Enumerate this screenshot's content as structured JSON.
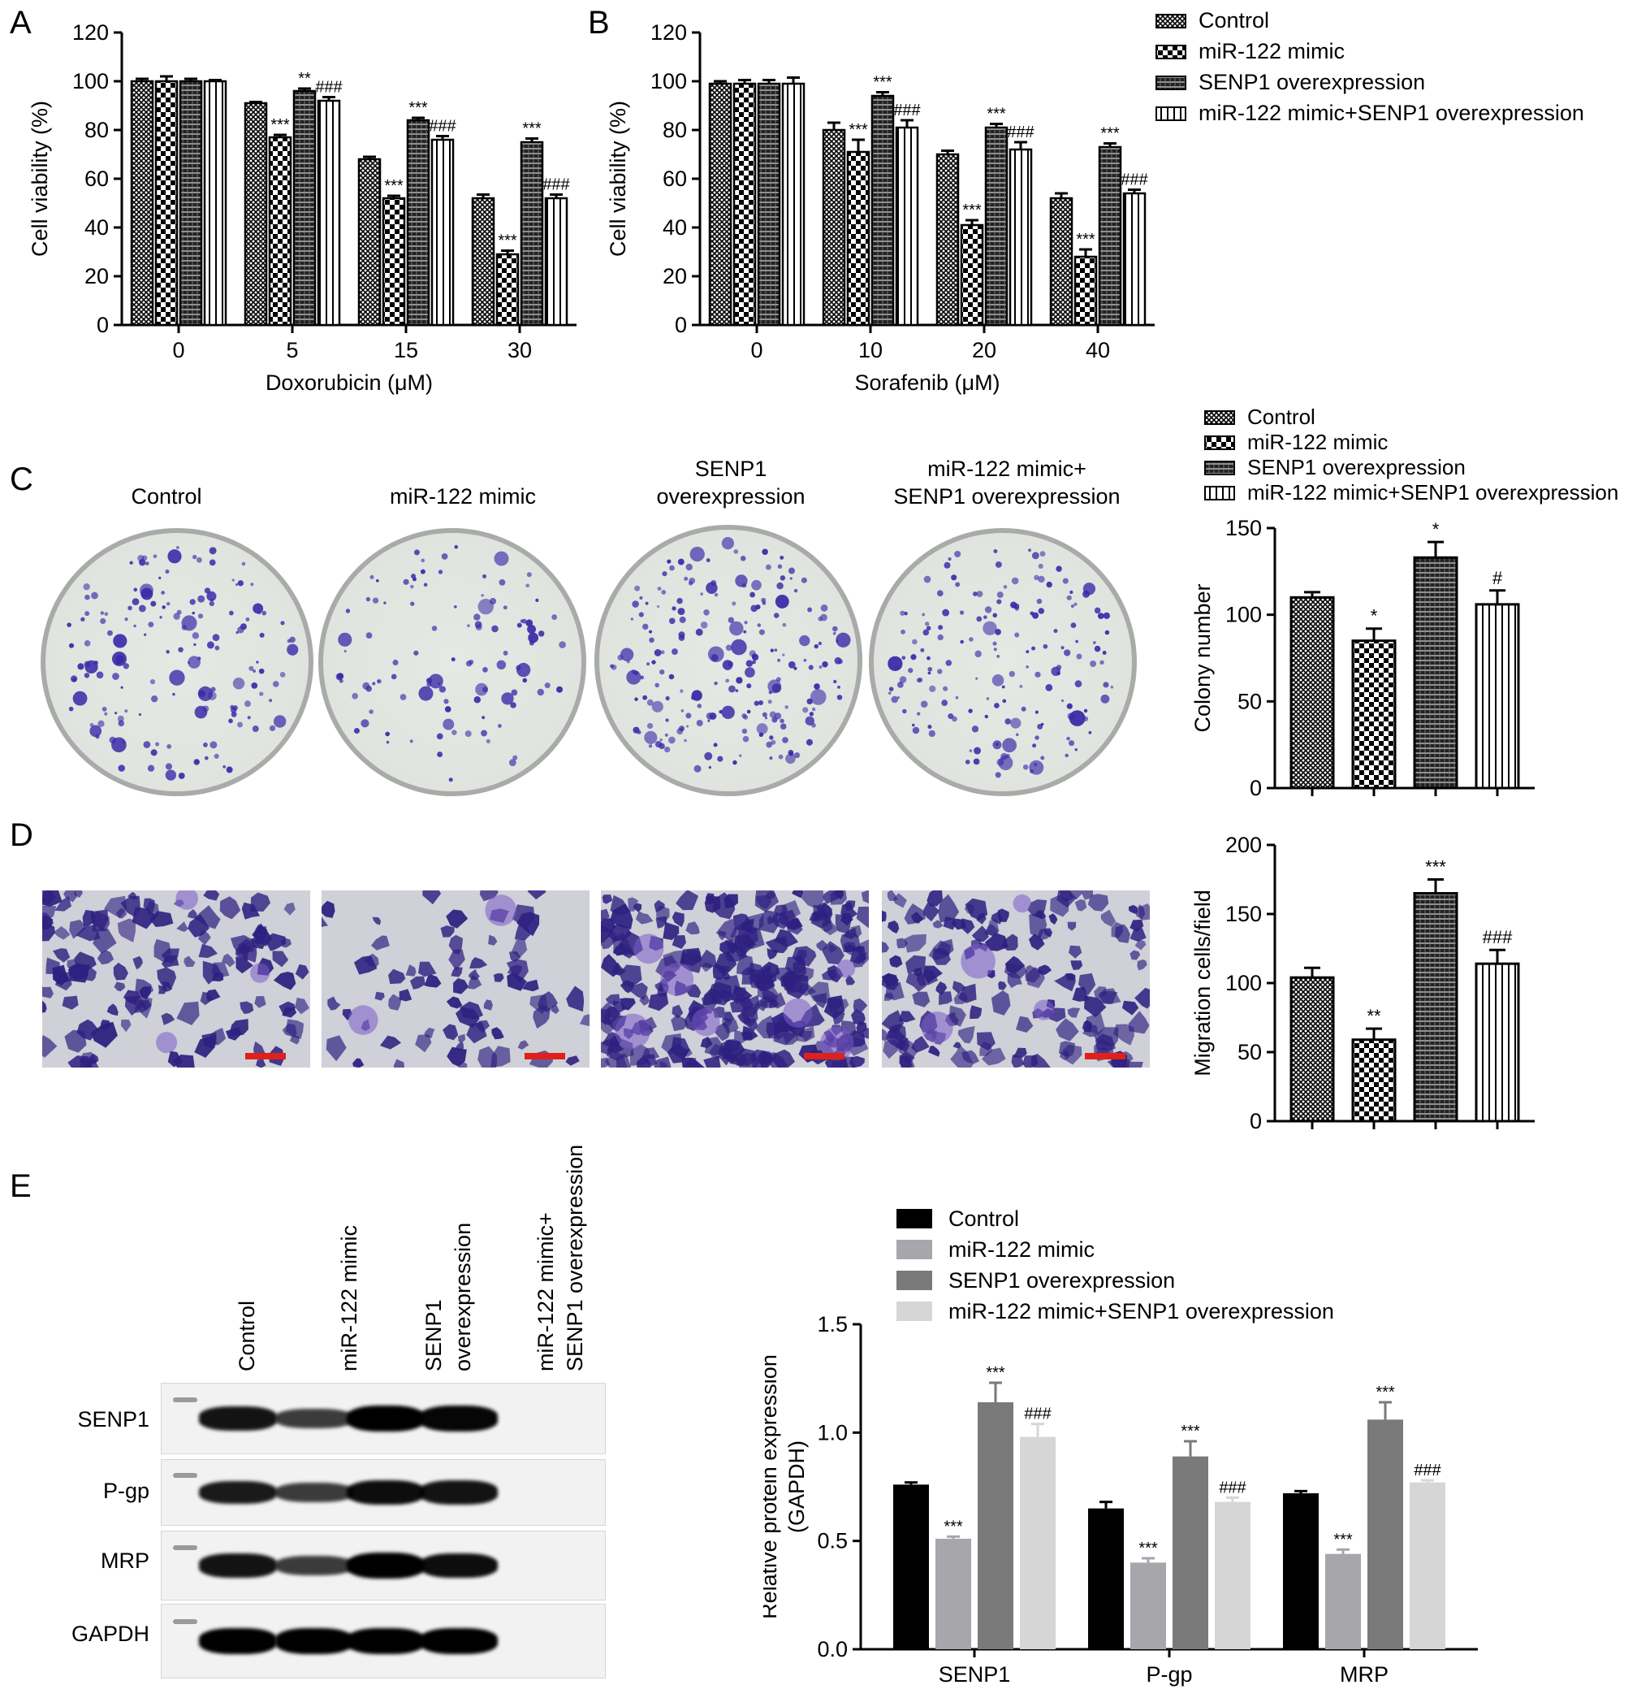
{
  "panels": {
    "A": "A",
    "B": "B",
    "C": "C",
    "D": "D",
    "E": "E"
  },
  "legend_patterned": [
    "Control",
    "miR-122 mimic",
    "SENP1 overexpression",
    "miR-122 mimic+SENP1 overexpression"
  ],
  "legend_gray": [
    "Control",
    "miR-122 mimic",
    "SENP1 overexpression",
    "miR-122 mimic+SENP1 overexpression"
  ],
  "colony_labels": {
    "control": "Control",
    "mimic": "miR-122 mimic",
    "senp1_1": "SENP1",
    "senp1_2": "overexpression",
    "combo_1": "miR-122 mimic+",
    "combo_2": "SENP1 overexpression"
  },
  "blot": {
    "lanes": [
      "Control",
      "miR-122 mimic",
      "SENP1\noverexpression",
      "miR-122 mimic+\nSENP1 overexpression"
    ],
    "lane_lines": {
      "control": "Control",
      "mimic": "miR-122 mimic",
      "senp1_1": "SENP1",
      "senp1_2": "overexpression",
      "combo_1": "miR-122 mimic+",
      "combo_2": "SENP1 overexpression"
    },
    "rows": [
      "SENP1",
      "P-gp",
      "MRP",
      "GAPDH"
    ],
    "band_strength": [
      [
        0.85,
        0.55,
        1.0,
        0.95
      ],
      [
        0.8,
        0.55,
        0.9,
        0.85
      ],
      [
        0.85,
        0.55,
        1.0,
        0.9
      ],
      [
        1.0,
        1.0,
        1.0,
        1.0
      ]
    ]
  },
  "colors": {
    "gray_series": [
      "#000000",
      "#a6a6ab",
      "#7a7a7a",
      "#d6d6d6"
    ],
    "scale_bar": "#e0201a",
    "stain": "#3a2aa8"
  },
  "chart_data": [
    {
      "id": "A",
      "type": "bar",
      "categories": [
        "0",
        "5",
        "15",
        "30"
      ],
      "xlabel": "Doxorubicin (μM)",
      "ylabel": "Cell viability (%)",
      "ylim": [
        0,
        120
      ],
      "yticks": [
        0,
        20,
        40,
        60,
        80,
        100,
        120
      ],
      "series": [
        {
          "name": "Control",
          "values": [
            100,
            91,
            68,
            52
          ],
          "errors": [
            1,
            0.5,
            1,
            1.5
          ],
          "marks": [
            "",
            "",
            "",
            ""
          ]
        },
        {
          "name": "miR-122 mimic",
          "values": [
            100,
            77,
            52,
            29
          ],
          "errors": [
            2,
            1,
            1,
            1.5
          ],
          "marks": [
            "",
            "***",
            "***",
            "***"
          ]
        },
        {
          "name": "SENP1 overexpression",
          "values": [
            100,
            96,
            84,
            75
          ],
          "errors": [
            1,
            1,
            1,
            1.5
          ],
          "marks": [
            "",
            "**",
            "***",
            "***"
          ]
        },
        {
          "name": "miR-122 mimic+SENP1 overexpression",
          "values": [
            100,
            92,
            76,
            52
          ],
          "errors": [
            0.5,
            1.5,
            1.5,
            1.5
          ],
          "marks": [
            "",
            "###",
            "###",
            "###"
          ]
        }
      ]
    },
    {
      "id": "B",
      "type": "bar",
      "categories": [
        "0",
        "10",
        "20",
        "40"
      ],
      "xlabel": "Sorafenib (μM)",
      "ylabel": "Cell viability (%)",
      "ylim": [
        0,
        120
      ],
      "yticks": [
        0,
        20,
        40,
        60,
        80,
        100,
        120
      ],
      "series": [
        {
          "name": "Control",
          "values": [
            99,
            80,
            70,
            52
          ],
          "errors": [
            1,
            3,
            1.5,
            2
          ],
          "marks": [
            "",
            "",
            "",
            ""
          ]
        },
        {
          "name": "miR-122 mimic",
          "values": [
            99,
            71,
            41,
            28
          ],
          "errors": [
            1.5,
            5,
            2,
            3
          ],
          "marks": [
            "",
            "***",
            "***",
            "***"
          ]
        },
        {
          "name": "SENP1 overexpression",
          "values": [
            99,
            94,
            81,
            73
          ],
          "errors": [
            1.5,
            1.5,
            1.5,
            1.5
          ],
          "marks": [
            "",
            "***",
            "***",
            "***"
          ]
        },
        {
          "name": "miR-122 mimic+SENP1 overexpression",
          "values": [
            99,
            81,
            72,
            54
          ],
          "errors": [
            2.5,
            3,
            3,
            1.5
          ],
          "marks": [
            "",
            "###",
            "###",
            "###"
          ]
        }
      ]
    },
    {
      "id": "C",
      "type": "bar",
      "categories": [
        "Control",
        "miR-122 mimic",
        "SENP1 overexpression",
        "miR-122 mimic+SENP1 overexpression"
      ],
      "xlabel": "",
      "ylabel": "Colony number",
      "ylim": [
        0,
        150
      ],
      "yticks": [
        0,
        50,
        100,
        150
      ],
      "values": [
        110,
        85,
        133,
        106
      ],
      "errors": [
        3,
        7,
        9,
        8
      ],
      "marks": [
        "",
        "*",
        "*",
        "#"
      ]
    },
    {
      "id": "D",
      "type": "bar",
      "categories": [
        "Control",
        "miR-122 mimic",
        "SENP1 overexpression",
        "miR-122 mimic+SENP1 overexpression"
      ],
      "xlabel": "",
      "ylabel": "Migration cells/field",
      "ylim": [
        0,
        200
      ],
      "yticks": [
        0,
        50,
        100,
        150,
        200
      ],
      "values": [
        104,
        59,
        165,
        114
      ],
      "errors": [
        7,
        8,
        10,
        10
      ],
      "marks": [
        "",
        "**",
        "***",
        "###"
      ]
    },
    {
      "id": "E",
      "type": "bar",
      "categories": [
        "SENP1",
        "P-gp",
        "MRP"
      ],
      "xlabel": "",
      "ylabel": "Relative protein expression\n(GAPDH)",
      "ylim": [
        0,
        1.5
      ],
      "yticks": [
        "0.0",
        "0.5",
        "1.0",
        "1.5"
      ],
      "series": [
        {
          "name": "Control",
          "values": [
            0.76,
            0.65,
            0.72
          ],
          "errors": [
            0.01,
            0.03,
            0.01
          ],
          "marks": [
            "",
            "",
            ""
          ]
        },
        {
          "name": "miR-122 mimic",
          "values": [
            0.51,
            0.4,
            0.44
          ],
          "errors": [
            0.01,
            0.02,
            0.02
          ],
          "marks": [
            "***",
            "***",
            "***"
          ]
        },
        {
          "name": "SENP1 overexpression",
          "values": [
            1.14,
            0.89,
            1.06
          ],
          "errors": [
            0.09,
            0.07,
            0.08
          ],
          "marks": [
            "***",
            "***",
            "***"
          ]
        },
        {
          "name": "miR-122 mimic+SENP1 overexpression",
          "values": [
            0.98,
            0.68,
            0.77
          ],
          "errors": [
            0.06,
            0.02,
            0.01
          ],
          "marks": [
            "###",
            "###",
            "###"
          ]
        }
      ]
    }
  ]
}
